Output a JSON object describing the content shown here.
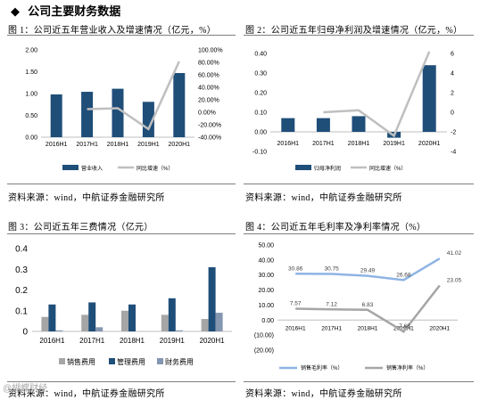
{
  "header": {
    "bullet": "◆",
    "title": "公司主要财务数据"
  },
  "figures": [
    {
      "caption": "图 1：公司近五年营业收入及增速情况（亿元，%）",
      "source": "资料来源：wind，中航证券金融研究所"
    },
    {
      "caption": "图 2：公司近五年归母净利润及增速情况（亿元，%）",
      "source": "资料来源：wind，中航证券金融研究所"
    },
    {
      "caption": "图 3：公司近五年三费情况（亿元）",
      "source": "资料来源：wind，中航证券金融研究所"
    },
    {
      "caption": "图 4：公司近五年毛利率及净利率情况（%）",
      "source": "资料来源：wind，中航证券金融研究所"
    }
  ],
  "watermark": "@蝴蝶财经",
  "colors": {
    "bar": "#1f4e79",
    "line_grey": "#bfbfbf",
    "line_blue": "#8eb4e3",
    "line_dark": "#a6a6a6",
    "bar_light": "#a6a6a6",
    "bar_mid": "#1f4e79",
    "bar_blue": "#8496b0"
  },
  "chart_data": [
    {
      "type": "bar",
      "categories": [
        "2016H1",
        "2017H1",
        "2018H1",
        "2019H1",
        "2020H1"
      ],
      "series": [
        {
          "name": "营业收入",
          "type": "bar",
          "axis": "left",
          "values": [
            0.98,
            1.04,
            1.11,
            0.81,
            1.47
          ]
        },
        {
          "name": "同比增速（%）",
          "type": "line",
          "axis": "right",
          "values": [
            null,
            5.0,
            6.5,
            -27.0,
            81.5
          ]
        }
      ],
      "ylim": [
        0,
        2.0
      ],
      "yticks": [
        "0.00",
        "0.50",
        "1.00",
        "1.50",
        "2.00"
      ],
      "y2lim": [
        -40,
        100
      ],
      "y2ticks": [
        "-40.00%",
        "-20.00%",
        "0.00%",
        "20.00%",
        "40.00%",
        "60.00%",
        "80.00%",
        "100.00%"
      ],
      "legend": "bottom"
    },
    {
      "type": "bar",
      "categories": [
        "2016H1",
        "2017H1",
        "2018H1",
        "2019H1",
        "2020H1"
      ],
      "series": [
        {
          "name": "归母净利润",
          "type": "bar",
          "axis": "left",
          "values": [
            0.07,
            0.07,
            0.08,
            -0.03,
            0.34
          ]
        },
        {
          "name": "同比增速（%）",
          "type": "line",
          "axis": "right",
          "values": [
            null,
            0.0,
            0.2,
            -2.4,
            6.2
          ]
        }
      ],
      "ylim": [
        -0.1,
        0.4
      ],
      "yticks": [
        "-0.10",
        "0.00",
        "0.10",
        "0.20",
        "0.30",
        "0.40"
      ],
      "y2lim": [
        -4,
        6
      ],
      "y2ticks": [
        "-4",
        "-2",
        "0",
        "2",
        "4",
        "6"
      ],
      "legend": "bottom"
    },
    {
      "type": "bar",
      "categories": [
        "2016H1",
        "2017H1",
        "2018H1",
        "2019H1",
        "2020H1"
      ],
      "series": [
        {
          "name": "销售费用",
          "values": [
            0.07,
            0.08,
            0.1,
            0.08,
            0.06
          ]
        },
        {
          "name": "管理费用",
          "values": [
            0.13,
            0.14,
            0.13,
            0.16,
            0.31
          ]
        },
        {
          "name": "财务费用",
          "values": [
            0.005,
            0.02,
            0.0,
            0.005,
            0.09
          ]
        }
      ],
      "ylim": [
        0,
        0.4
      ],
      "yticks": [
        "0",
        "0.1",
        "0.2",
        "0.3",
        "0.4"
      ],
      "legend": "bottom"
    },
    {
      "type": "line",
      "categories": [
        "2016H1",
        "2017H1",
        "2018H1",
        "2019H1",
        "2020H1"
      ],
      "series": [
        {
          "name": "销售毛利率（%）",
          "values": [
            30.86,
            30.75,
            29.49,
            26.68,
            41.02
          ],
          "labels": [
            "30.86",
            "30.75",
            "29.49",
            "26.68",
            "41.02"
          ]
        },
        {
          "name": "销售净利率（%）",
          "values": [
            7.57,
            7.12,
            6.83,
            -7.68,
            23.05
          ],
          "labels": [
            "7.57",
            "7.12",
            "6.83",
            "-7.68",
            "23.05"
          ]
        }
      ],
      "ylim": [
        -20,
        50
      ],
      "yticks": [
        "(20.00)",
        "(10.00)",
        "0.00",
        "10.00",
        "20.00",
        "30.00",
        "40.00",
        "50.00"
      ],
      "legend": "bottom"
    }
  ]
}
